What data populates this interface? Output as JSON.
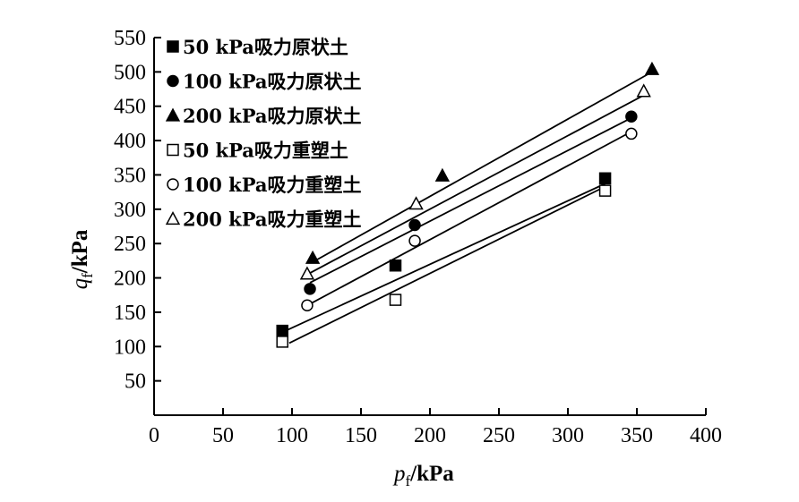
{
  "chart_data": {
    "type": "scatter",
    "xlabel_main": "p",
    "xlabel_sub": "f",
    "xlabel_unit": "/kPa",
    "ylabel_main": "q",
    "ylabel_sub": "f",
    "ylabel_unit": "/kPa",
    "xlim": [
      0,
      400
    ],
    "ylim": [
      0,
      550
    ],
    "xticks": [
      0,
      50,
      100,
      150,
      200,
      250,
      300,
      350,
      400
    ],
    "yticks": [
      50,
      100,
      150,
      200,
      250,
      300,
      350,
      400,
      450,
      500,
      550
    ],
    "grid": false,
    "legend_position": "top-left",
    "series": [
      {
        "name": "50 kPa吸力原状土",
        "marker": "square",
        "filled": true,
        "points": [
          [
            93,
            123
          ],
          [
            175,
            218
          ],
          [
            327,
            345
          ]
        ],
        "fit": [
          [
            90,
            118
          ],
          [
            330,
            340
          ]
        ]
      },
      {
        "name": "100 kPa吸力原状土",
        "marker": "circle",
        "filled": true,
        "points": [
          [
            113,
            184
          ],
          [
            189,
            277
          ],
          [
            346,
            435
          ]
        ],
        "fit": [
          [
            113,
            193
          ],
          [
            346,
            433
          ]
        ]
      },
      {
        "name": "200 kPa吸力原状土",
        "marker": "triangle",
        "filled": true,
        "points": [
          [
            115,
            229
          ],
          [
            209,
            349
          ],
          [
            361,
            504
          ]
        ],
        "fit": [
          [
            115,
            223
          ],
          [
            361,
            500
          ]
        ]
      },
      {
        "name": "50 kPa吸力重塑土",
        "marker": "square",
        "filled": false,
        "points": [
          [
            93,
            107
          ],
          [
            175,
            168
          ],
          [
            327,
            327
          ]
        ],
        "fit": [
          [
            98,
            105
          ],
          [
            327,
            333
          ]
        ]
      },
      {
        "name": "100 kPa吸力重塑土",
        "marker": "circle",
        "filled": false,
        "points": [
          [
            111,
            160
          ],
          [
            189,
            254
          ],
          [
            346,
            410
          ]
        ],
        "fit": [
          [
            113,
            162
          ],
          [
            346,
            413
          ]
        ]
      },
      {
        "name": "200 kPa吸力重塑土",
        "marker": "triangle",
        "filled": false,
        "points": [
          [
            111,
            206
          ],
          [
            190,
            308
          ],
          [
            355,
            472
          ]
        ],
        "fit": [
          [
            112,
            206
          ],
          [
            355,
            466
          ]
        ]
      }
    ]
  }
}
